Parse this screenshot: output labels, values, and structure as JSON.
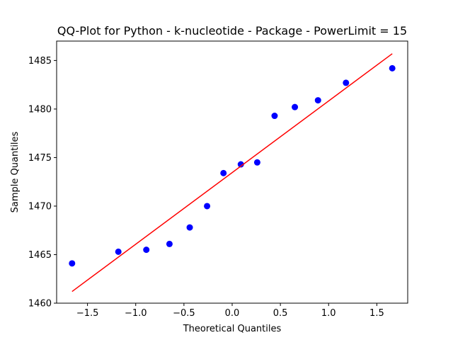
{
  "chart_data": {
    "type": "scatter",
    "title": "QQ-Plot for Python - k-nucleotide - Package - PowerLimit = 15",
    "xlabel": "Theoretical Quantiles",
    "ylabel": "Sample Quantiles",
    "xlim": [
      -1.82,
      1.82
    ],
    "ylim": [
      1460,
      1487
    ],
    "xticks": [
      -1.5,
      -1.0,
      -0.5,
      0.0,
      0.5,
      1.0,
      1.5
    ],
    "xtick_labels": [
      "−1.5",
      "−1.0",
      "−0.5",
      "0.0",
      "0.5",
      "1.0",
      "1.5"
    ],
    "yticks": [
      1460,
      1465,
      1470,
      1475,
      1480,
      1485
    ],
    "ytick_labels": [
      "1460",
      "1465",
      "1470",
      "1475",
      "1480",
      "1485"
    ],
    "grid": false,
    "series": [
      {
        "kind": "points",
        "color": "#0000ff",
        "x": [
          -1.66,
          -1.18,
          -0.89,
          -0.65,
          -0.44,
          -0.26,
          -0.09,
          0.09,
          0.26,
          0.44,
          0.65,
          0.89,
          1.18,
          1.66
        ],
        "y": [
          1464.1,
          1465.3,
          1465.5,
          1466.1,
          1467.8,
          1470.0,
          1473.4,
          1474.3,
          1474.5,
          1479.3,
          1480.2,
          1480.9,
          1482.7,
          1484.2
        ]
      },
      {
        "kind": "reference-line",
        "color": "#ff0000",
        "x": [
          -1.66,
          1.66
        ],
        "y": [
          1461.2,
          1485.7
        ]
      }
    ]
  }
}
